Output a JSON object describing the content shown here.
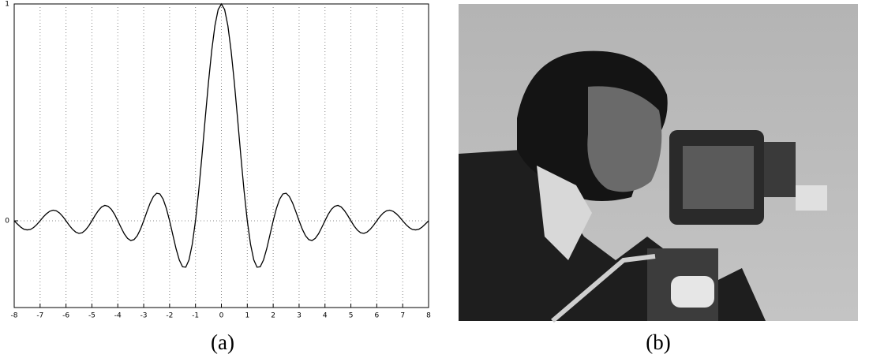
{
  "chart_data": {
    "type": "line",
    "x": [
      -8,
      -7.875,
      -7.75,
      -7.625,
      -7.5,
      -7.375,
      -7.25,
      -7.125,
      -7,
      -6.875,
      -6.75,
      -6.625,
      -6.5,
      -6.375,
      -6.25,
      -6.125,
      -6,
      -5.875,
      -5.75,
      -5.625,
      -5.5,
      -5.375,
      -5.25,
      -5.125,
      -5,
      -4.875,
      -4.75,
      -4.625,
      -4.5,
      -4.375,
      -4.25,
      -4.125,
      -4,
      -3.875,
      -3.75,
      -3.625,
      -3.5,
      -3.375,
      -3.25,
      -3.125,
      -3,
      -2.875,
      -2.75,
      -2.625,
      -2.5,
      -2.375,
      -2.25,
      -2.125,
      -2,
      -1.875,
      -1.75,
      -1.625,
      -1.5,
      -1.375,
      -1.25,
      -1.125,
      -1,
      -0.875,
      -0.75,
      -0.625,
      -0.5,
      -0.375,
      -0.25,
      -0.125,
      0,
      0.125,
      0.25,
      0.375,
      0.5,
      0.625,
      0.75,
      0.875,
      1,
      1.125,
      1.25,
      1.375,
      1.5,
      1.625,
      1.75,
      1.875,
      2,
      2.125,
      2.25,
      2.375,
      2.5,
      2.625,
      2.75,
      2.875,
      3,
      3.125,
      3.25,
      3.375,
      3.5,
      3.625,
      3.75,
      3.875,
      4,
      4.125,
      4.25,
      4.375,
      4.5,
      4.625,
      4.75,
      4.875,
      5,
      5.125,
      5.25,
      5.375,
      5.5,
      5.625,
      5.75,
      5.875,
      6,
      6.125,
      6.25,
      6.375,
      6.5,
      6.625,
      6.75,
      6.875,
      7,
      7.125,
      7.25,
      7.375,
      7.5,
      7.625,
      7.75,
      7.875,
      8
    ],
    "series": [
      {
        "color": "#000000",
        "values": [
          0,
          -0.015,
          -0.029,
          -0.039,
          -0.042,
          -0.04,
          -0.031,
          -0.017,
          0,
          0.018,
          0.033,
          0.044,
          0.049,
          0.046,
          0.036,
          0.02,
          0,
          -0.021,
          -0.039,
          -0.052,
          -0.058,
          -0.055,
          -0.043,
          -0.024,
          0,
          0.025,
          0.047,
          0.064,
          0.071,
          0.067,
          0.053,
          0.03,
          0,
          -0.031,
          -0.06,
          -0.081,
          -0.091,
          -0.087,
          -0.069,
          -0.039,
          0,
          0.042,
          0.082,
          0.112,
          0.127,
          0.124,
          0.1,
          0.057,
          0,
          -0.065,
          -0.129,
          -0.181,
          -0.212,
          -0.214,
          -0.18,
          -0.108,
          0,
          0.139,
          0.3,
          0.471,
          0.637,
          0.784,
          0.9,
          0.974,
          1,
          0.974,
          0.9,
          0.784,
          0.637,
          0.471,
          0.3,
          0.139,
          0,
          -0.108,
          -0.18,
          -0.214,
          -0.212,
          -0.181,
          -0.129,
          -0.065,
          0,
          0.057,
          0.1,
          0.124,
          0.127,
          0.112,
          0.082,
          0.042,
          0,
          -0.039,
          -0.069,
          -0.087,
          -0.091,
          -0.081,
          -0.06,
          -0.031,
          0,
          0.03,
          0.053,
          0.067,
          0.071,
          0.064,
          0.047,
          0.025,
          0,
          -0.024,
          -0.043,
          -0.055,
          -0.058,
          -0.052,
          -0.039,
          -0.021,
          0,
          0.02,
          0.036,
          0.046,
          0.049,
          0.044,
          0.033,
          0.018,
          0,
          -0.017,
          -0.031,
          -0.04,
          -0.042,
          -0.039,
          -0.029,
          -0.015,
          0
        ]
      }
    ],
    "xlim": [
      -8,
      8
    ],
    "xticks": [
      -8,
      -7,
      -6,
      -5,
      -4,
      -3,
      -2,
      -1,
      0,
      1,
      2,
      3,
      4,
      5,
      6,
      7,
      8
    ],
    "ylim": [
      -0.4,
      1
    ],
    "yticks": [
      0,
      1
    ],
    "grid": true
  },
  "figure": {
    "captions": [
      "(a)",
      "(b)"
    ]
  }
}
